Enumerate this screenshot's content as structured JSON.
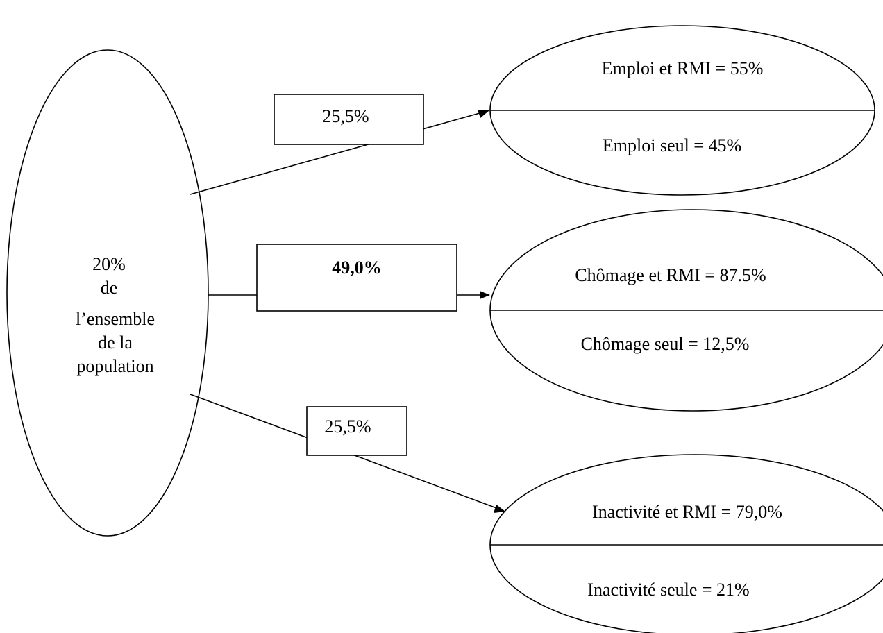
{
  "source": {
    "lines": [
      "20%",
      "de",
      "l’ensemble",
      "de la",
      "population"
    ]
  },
  "branches": [
    {
      "rate": "25,5%",
      "rate_bold": false,
      "top_label": "Emploi et RMI = 55%",
      "bottom_label": "Emploi seul = 45%"
    },
    {
      "rate": "49,0%",
      "rate_bold": true,
      "top_label": "Chômage et RMI = 87.5%",
      "bottom_label": "Chômage seul = 12,5%"
    },
    {
      "rate": "25,5%",
      "rate_bold": false,
      "top_label": "Inactivité et RMI = 79,0%",
      "bottom_label": "Inactivité seule = 21%"
    }
  ]
}
